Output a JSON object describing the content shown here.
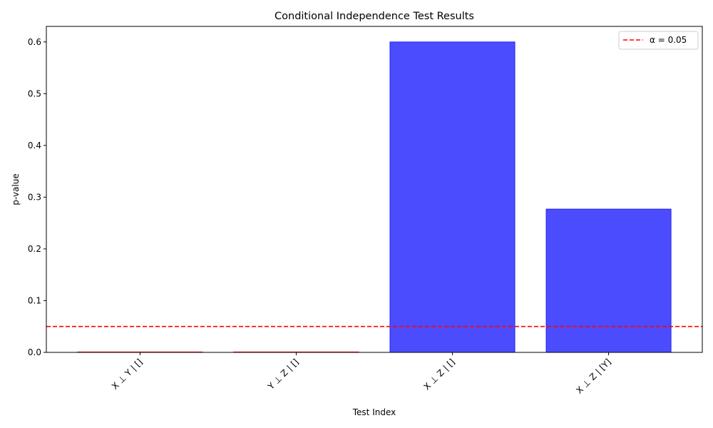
{
  "chart_data": {
    "type": "bar",
    "title": "Conditional Independence Test Results",
    "xlabel": "Test Index",
    "ylabel": "p-value",
    "categories": [
      "X ⊥ Y | []",
      "Y ⊥ Z | []",
      "X ⊥ Z | []",
      "X ⊥ Z | [Y]"
    ],
    "values": [
      0.001,
      0.001,
      0.6,
      0.277
    ],
    "bar_colors": [
      "#ff0000",
      "#ff0000",
      "#0000ff",
      "#0000ff"
    ],
    "bar_alpha": 0.7,
    "ylim": [
      0,
      0.63
    ],
    "yticks": [
      0.0,
      0.1,
      0.2,
      0.3,
      0.4,
      0.5,
      0.6
    ],
    "ytick_labels": [
      "0.0",
      "0.1",
      "0.2",
      "0.3",
      "0.4",
      "0.5",
      "0.6"
    ],
    "threshold": {
      "value": 0.05,
      "label": "α = 0.05",
      "color": "#ff0000",
      "style": "dashed"
    },
    "legend": {
      "position": "top-right"
    },
    "grid": false
  }
}
